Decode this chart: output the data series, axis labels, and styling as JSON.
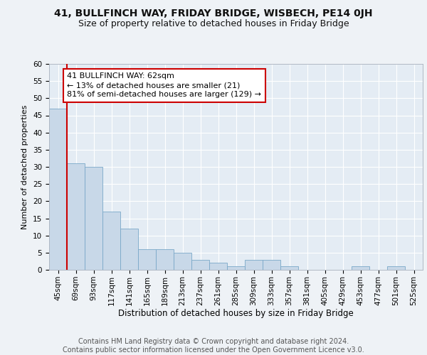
{
  "title1": "41, BULLFINCH WAY, FRIDAY BRIDGE, WISBECH, PE14 0JH",
  "title2": "Size of property relative to detached houses in Friday Bridge",
  "xlabel": "Distribution of detached houses by size in Friday Bridge",
  "ylabel": "Number of detached properties",
  "categories": [
    "45sqm",
    "69sqm",
    "93sqm",
    "117sqm",
    "141sqm",
    "165sqm",
    "189sqm",
    "213sqm",
    "237sqm",
    "261sqm",
    "285sqm",
    "309sqm",
    "333sqm",
    "357sqm",
    "381sqm",
    "405sqm",
    "429sqm",
    "453sqm",
    "477sqm",
    "501sqm",
    "525sqm"
  ],
  "values": [
    47,
    31,
    30,
    17,
    12,
    6,
    6,
    5,
    3,
    2,
    1,
    3,
    3,
    1,
    0,
    0,
    0,
    1,
    0,
    1,
    0
  ],
  "bar_color": "#c8d8e8",
  "bar_edge_color": "#7aa8c8",
  "annotation_text": "41 BULLFINCH WAY: 62sqm\n← 13% of detached houses are smaller (21)\n81% of semi-detached houses are larger (129) →",
  "annotation_box_color": "#ffffff",
  "annotation_box_edge_color": "#cc0000",
  "vline_color": "#cc0000",
  "ylim": [
    0,
    60
  ],
  "yticks": [
    0,
    5,
    10,
    15,
    20,
    25,
    30,
    35,
    40,
    45,
    50,
    55,
    60
  ],
  "footer1": "Contains HM Land Registry data © Crown copyright and database right 2024.",
  "footer2": "Contains public sector information licensed under the Open Government Licence v3.0.",
  "bg_color": "#eef2f6",
  "plot_bg_color": "#e4ecf4",
  "grid_color": "#ffffff",
  "title1_fontsize": 10,
  "title2_fontsize": 9,
  "xlabel_fontsize": 8.5,
  "ylabel_fontsize": 8,
  "tick_fontsize": 7.5,
  "footer_fontsize": 7,
  "ann_fontsize": 8
}
